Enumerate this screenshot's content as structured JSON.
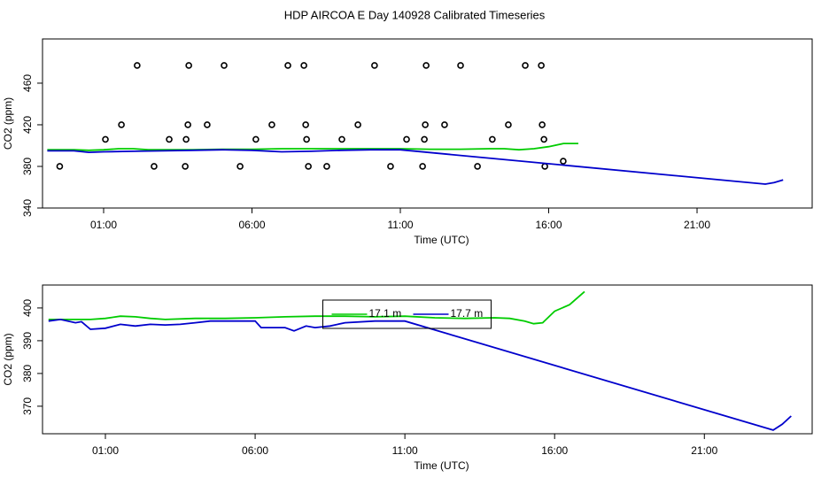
{
  "title": "HDP AIRCOA E  Day 140928  Calibrated Timeseries",
  "chart_data": [
    {
      "type": "line",
      "xlabel": "Time (UTC)",
      "ylabel": "CO2 (ppm)",
      "xlim": [
        -1.06,
        24.88
      ],
      "ylim": [
        340,
        502.5
      ],
      "xticks": [
        {
          "value": 1,
          "label": "01:00"
        },
        {
          "value": 6,
          "label": "06:00"
        },
        {
          "value": 11,
          "label": "11:00"
        },
        {
          "value": 16,
          "label": "16:00"
        },
        {
          "value": 21,
          "label": "21:00"
        }
      ],
      "yticks": [
        340,
        380,
        420,
        460
      ],
      "series": [
        {
          "style": "points",
          "color": "#000000",
          "x": [
            -0.48,
            1.06,
            1.6,
            2.13,
            2.7,
            3.21,
            3.75,
            3.78,
            3.84,
            3.87,
            4.49,
            5.06,
            5.6,
            6.13,
            6.67,
            7.21,
            7.75,
            7.81,
            7.84,
            7.9,
            8.52,
            9.03,
            9.57,
            10.13,
            10.67,
            11.21,
            11.75,
            11.81,
            11.84,
            11.87,
            12.49,
            13.03,
            13.6,
            14.1,
            14.64,
            15.21,
            15.75,
            15.78,
            15.84,
            15.87,
            16.49
          ],
          "values": [
            380,
            406,
            420,
            477,
            380,
            406,
            380,
            406,
            420,
            477,
            420,
            477,
            380,
            406,
            420,
            477,
            477,
            420,
            406,
            380,
            380,
            406,
            420,
            477,
            380,
            406,
            380,
            406,
            420,
            477,
            420,
            477,
            380,
            406,
            420,
            477,
            477,
            420,
            406,
            380,
            385
          ]
        },
        {
          "style": "line",
          "color": "#00cc00",
          "x": [
            -0.9,
            -0.5,
            0,
            0.5,
            1,
            1.5,
            2,
            2.5,
            3,
            4,
            5,
            6,
            7,
            8,
            9,
            10,
            11,
            12,
            13,
            14,
            14.5,
            15,
            15.5,
            16,
            16.5,
            17
          ],
          "values": [
            396,
            396,
            396,
            395.5,
            396,
            397,
            397,
            396,
            396,
            396,
            396.5,
            396.5,
            397,
            397,
            397,
            397,
            397,
            396.5,
            396.5,
            397,
            397,
            396,
            397,
            399,
            402,
            402
          ]
        },
        {
          "style": "line",
          "color": "#0000cc",
          "x": [
            -0.9,
            0,
            0.5,
            1,
            2,
            3,
            4,
            5,
            6,
            7,
            8,
            9,
            10,
            11,
            23.3,
            23.6,
            23.9
          ],
          "values": [
            395,
            395,
            393.5,
            394,
            394.5,
            395,
            395.5,
            396,
            395.5,
            394,
            394.5,
            395.5,
            396,
            396,
            363,
            364.5,
            367
          ]
        }
      ]
    },
    {
      "type": "line",
      "xlabel": "Time (UTC)",
      "ylabel": "CO2 (ppm)",
      "xlim": [
        -1.1,
        24.6
      ],
      "ylim": [
        361.6,
        407
      ],
      "xticks": [
        {
          "value": 1,
          "label": "01:00"
        },
        {
          "value": 6,
          "label": "06:00"
        },
        {
          "value": 11,
          "label": "11:00"
        },
        {
          "value": 16,
          "label": "16:00"
        },
        {
          "value": 21,
          "label": "21:00"
        }
      ],
      "yticks": [
        400,
        390,
        380,
        370
      ],
      "legend": "top-center",
      "series": [
        {
          "name": "17.1 m",
          "style": "line",
          "color": "#00cc00",
          "x": [
            -0.9,
            -0.5,
            0,
            0.5,
            1,
            1.5,
            2,
            2.5,
            3,
            4,
            5,
            6,
            7,
            8,
            9,
            10,
            11,
            12,
            13,
            14,
            14.5,
            15,
            15.3,
            15.6,
            16,
            16.5,
            17
          ],
          "values": [
            396.5,
            396.5,
            396.5,
            396.5,
            396.8,
            397.5,
            397.3,
            396.8,
            396.5,
            396.8,
            396.8,
            397,
            397.3,
            397.5,
            397.5,
            397.3,
            397.5,
            397,
            396.8,
            397,
            396.8,
            396,
            395.2,
            395.5,
            399,
            401,
            405
          ]
        },
        {
          "name": "17.7 m",
          "style": "line",
          "color": "#0000cc",
          "x": [
            -0.9,
            -0.5,
            0,
            0.2,
            0.5,
            1,
            1.5,
            2,
            2.5,
            3,
            3.5,
            4,
            4.5,
            5,
            5.5,
            6,
            6.2,
            7,
            7.3,
            7.7,
            8,
            8.5,
            9,
            10,
            11,
            23.3,
            23.6,
            23.9
          ],
          "values": [
            396,
            396.5,
            395.5,
            395.8,
            393.5,
            393.8,
            395,
            394.5,
            395,
            394.8,
            395,
            395.5,
            396,
            396,
            396,
            396,
            394,
            394,
            393,
            394.5,
            394,
            394.5,
            395.5,
            396,
            396,
            362.7,
            364.5,
            367
          ]
        }
      ]
    }
  ]
}
